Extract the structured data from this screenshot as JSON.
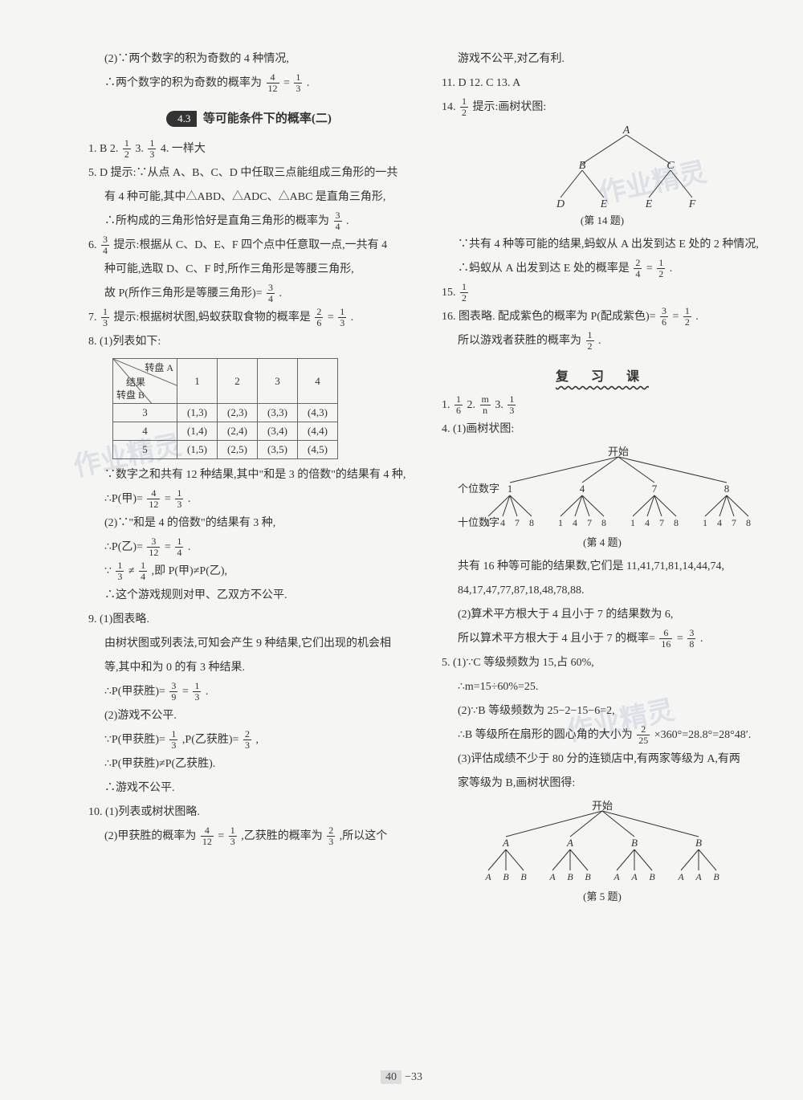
{
  "left": {
    "l1": "(2)∵两个数字的积为奇数的 4 种情况,",
    "l2_a": "∴两个数字的积为奇数的概率为",
    "l2_frac1_n": "4",
    "l2_frac1_d": "12",
    "l2_eq": "=",
    "l2_frac2_n": "1",
    "l2_frac2_d": "3",
    "l2_dot": ".",
    "section_pill": "4.3",
    "section_title": "等可能条件下的概率(二)",
    "q1_a": "1. B  2.",
    "q1_f1n": "1",
    "q1_f1d": "2",
    "q1_b": "  3.",
    "q1_f2n": "1",
    "q1_f2d": "3",
    "q1_c": "  4. 一样大",
    "q5a": "5. D  提示:∵从点 A、B、C、D 中任取三点能组成三角形的一共",
    "q5b": "有 4 种可能,其中△ABD、△ADC、△ABC 是直角三角形,",
    "q5c_a": "∴所构成的三角形恰好是直角三角形的概率为",
    "q5c_fn": "3",
    "q5c_fd": "4",
    "q5c_b": ".",
    "q6a_a": "6.",
    "q6a_fn": "3",
    "q6a_fd": "4",
    "q6a_b": "  提示:根据从 C、D、E、F 四个点中任意取一点,一共有 4",
    "q6b": "种可能,选取 D、C、F 时,所作三角形是等腰三角形,",
    "q6c_a": "故 P(所作三角形是等腰三角形)=",
    "q6c_fn": "3",
    "q6c_fd": "4",
    "q6c_b": ".",
    "q7_a": "7.",
    "q7_f1n": "1",
    "q7_f1d": "3",
    "q7_b": "  提示:根据树状图,蚂蚁获取食物的概率是",
    "q7_f2n": "2",
    "q7_f2d": "6",
    "q7_eq": "=",
    "q7_f3n": "1",
    "q7_f3d": "3",
    "q7_dot": ".",
    "q8a": "8. (1)列表如下:",
    "table": {
      "hdr_a": "转盘 A",
      "hdr_mid": "结果",
      "hdr_b": "转盘 B",
      "cols": [
        "1",
        "2",
        "3",
        "4"
      ],
      "rows": [
        {
          "h": "3",
          "cells": [
            "(1,3)",
            "(2,3)",
            "(3,3)",
            "(4,3)"
          ]
        },
        {
          "h": "4",
          "cells": [
            "(1,4)",
            "(2,4)",
            "(3,4)",
            "(4,4)"
          ]
        },
        {
          "h": "5",
          "cells": [
            "(1,5)",
            "(2,5)",
            "(3,5)",
            "(4,5)"
          ]
        }
      ]
    },
    "q8b": "∵数字之和共有 12 种结果,其中\"和是 3 的倍数\"的结果有 4 种,",
    "q8c_a": "∴P(甲)=",
    "q8c_f1n": "4",
    "q8c_f1d": "12",
    "q8c_eq": "=",
    "q8c_f2n": "1",
    "q8c_f2d": "3",
    "q8c_dot": ".",
    "q8d": "(2)∵\"和是 4 的倍数\"的结果有 3 种,",
    "q8e_a": "∴P(乙)=",
    "q8e_f1n": "3",
    "q8e_f1d": "12",
    "q8e_eq": "=",
    "q8e_f2n": "1",
    "q8e_f2d": "4",
    "q8e_dot": ".",
    "q8f_a": "∵",
    "q8f_f1n": "1",
    "q8f_f1d": "3",
    "q8f_b": "≠",
    "q8f_f2n": "1",
    "q8f_f2d": "4",
    "q8f_c": ",即 P(甲)≠P(乙),",
    "q8g": "∴这个游戏规则对甲、乙双方不公平.",
    "q9a": "9. (1)图表略.",
    "q9b": "由树状图或列表法,可知会产生 9 种结果,它们出现的机会相",
    "q9c": "等,其中和为 0 的有 3 种结果.",
    "q9d_a": "∴P(甲获胜)=",
    "q9d_f1n": "3",
    "q9d_f1d": "9",
    "q9d_eq": "=",
    "q9d_f2n": "1",
    "q9d_f2d": "3",
    "q9d_dot": ".",
    "q9e": "(2)游戏不公平.",
    "q9f_a": "∵P(甲获胜)=",
    "q9f_f1n": "1",
    "q9f_f1d": "3",
    "q9f_b": ",P(乙获胜)=",
    "q9f_f2n": "2",
    "q9f_f2d": "3",
    "q9f_c": ",",
    "q9g": "∴P(甲获胜)≠P(乙获胜).",
    "q9h": "∴游戏不公平.",
    "q10a": "10. (1)列表或树状图略.",
    "q10b_a": "(2)甲获胜的概率为",
    "q10b_f1n": "4",
    "q10b_f1d": "12",
    "q10b_eq": "=",
    "q10b_f2n": "1",
    "q10b_f2d": "3",
    "q10b_b": ",乙获胜的概率为",
    "q10b_f3n": "2",
    "q10b_f3d": "3",
    "q10b_c": ",所以这个"
  },
  "right": {
    "r1": "游戏不公平,对乙有利.",
    "r2": "11. D  12. C  13. A",
    "r14_a": "14.",
    "r14_fn": "1",
    "r14_fd": "2",
    "r14_b": "  提示:画树状图:",
    "tree14": {
      "root": "A",
      "mids": [
        "B",
        "C"
      ],
      "leaves": [
        "D",
        "E",
        "E",
        "F"
      ],
      "caption": "(第 14 题)"
    },
    "r14c": "∵共有 4 种等可能的结果,蚂蚁从 A 出发到达 E 处的 2 种情况,",
    "r14d_a": "∴蚂蚁从 A 出发到达 E 处的概率是",
    "r14d_f1n": "2",
    "r14d_f1d": "4",
    "r14d_eq": "=",
    "r14d_f2n": "1",
    "r14d_f2d": "2",
    "r14d_dot": ".",
    "r15_a": "15.",
    "r15_fn": "1",
    "r15_fd": "2",
    "r16_a": "16. 图表略. 配成紫色的概率为 P(配成紫色)=",
    "r16_f1n": "3",
    "r16_f1d": "6",
    "r16_eq": "=",
    "r16_f2n": "1",
    "r16_f2d": "2",
    "r16_dot": ".",
    "r16b_a": "所以游戏者获胜的概率为",
    "r16b_fn": "1",
    "r16b_fd": "2",
    "r16b_dot": ".",
    "review": "复 习 课",
    "rq1_a": "1.",
    "rq1_f1n": "1",
    "rq1_f1d": "6",
    "rq1_b": "  2.",
    "rq1_f2n": "m",
    "rq1_f2d": "n",
    "rq1_c": "  3.",
    "rq1_f3n": "1",
    "rq1_f3d": "3",
    "rq4a": "4. (1)画树状图:",
    "tree4": {
      "root": "开始",
      "row1_label": "个位数字",
      "row1": [
        "1",
        "4",
        "7",
        "8"
      ],
      "row2_label": "十位数字",
      "row2": [
        "1",
        "4",
        "7",
        "8",
        "1",
        "4",
        "7",
        "8",
        "1",
        "4",
        "7",
        "8",
        "1",
        "4",
        "7",
        "8"
      ],
      "caption": "(第 4 题)"
    },
    "rq4b": "共有 16 种等可能的结果数,它们是 11,41,71,81,14,44,74,",
    "rq4c": "84,17,47,77,87,18,48,78,88.",
    "rq4d": "(2)算术平方根大于 4 且小于 7 的结果数为 6,",
    "rq4e_a": "所以算术平方根大于 4 且小于 7 的概率=",
    "rq4e_f1n": "6",
    "rq4e_f1d": "16",
    "rq4e_eq": "=",
    "rq4e_f2n": "3",
    "rq4e_f2d": "8",
    "rq4e_dot": ".",
    "rq5a": "5. (1)∵C 等级频数为 15,占 60%,",
    "rq5b": "∴m=15÷60%=25.",
    "rq5c": "(2)∵B 等级频数为 25−2−15−6=2,",
    "rq5d_a": "∴B 等级所在扇形的圆心角的大小为",
    "rq5d_f1n": "2",
    "rq5d_f1d": "25",
    "rq5d_b": "×360°=28.8°=28°48′.",
    "rq5e": "(3)评估成绩不少于 80 分的连锁店中,有两家等级为 A,有两",
    "rq5f": "家等级为 B,画树状图得:",
    "tree5": {
      "root": "开始",
      "row1": [
        "A",
        "A",
        "B",
        "B"
      ],
      "row2": [
        "A",
        "B",
        "B",
        "A",
        "B",
        "B",
        "A",
        "A",
        "B",
        "A",
        "A",
        "B"
      ],
      "caption": "(第 5 题)"
    }
  },
  "pagenum_a": "40",
  "pagenum_b": "−33",
  "watermark": "作业精灵"
}
